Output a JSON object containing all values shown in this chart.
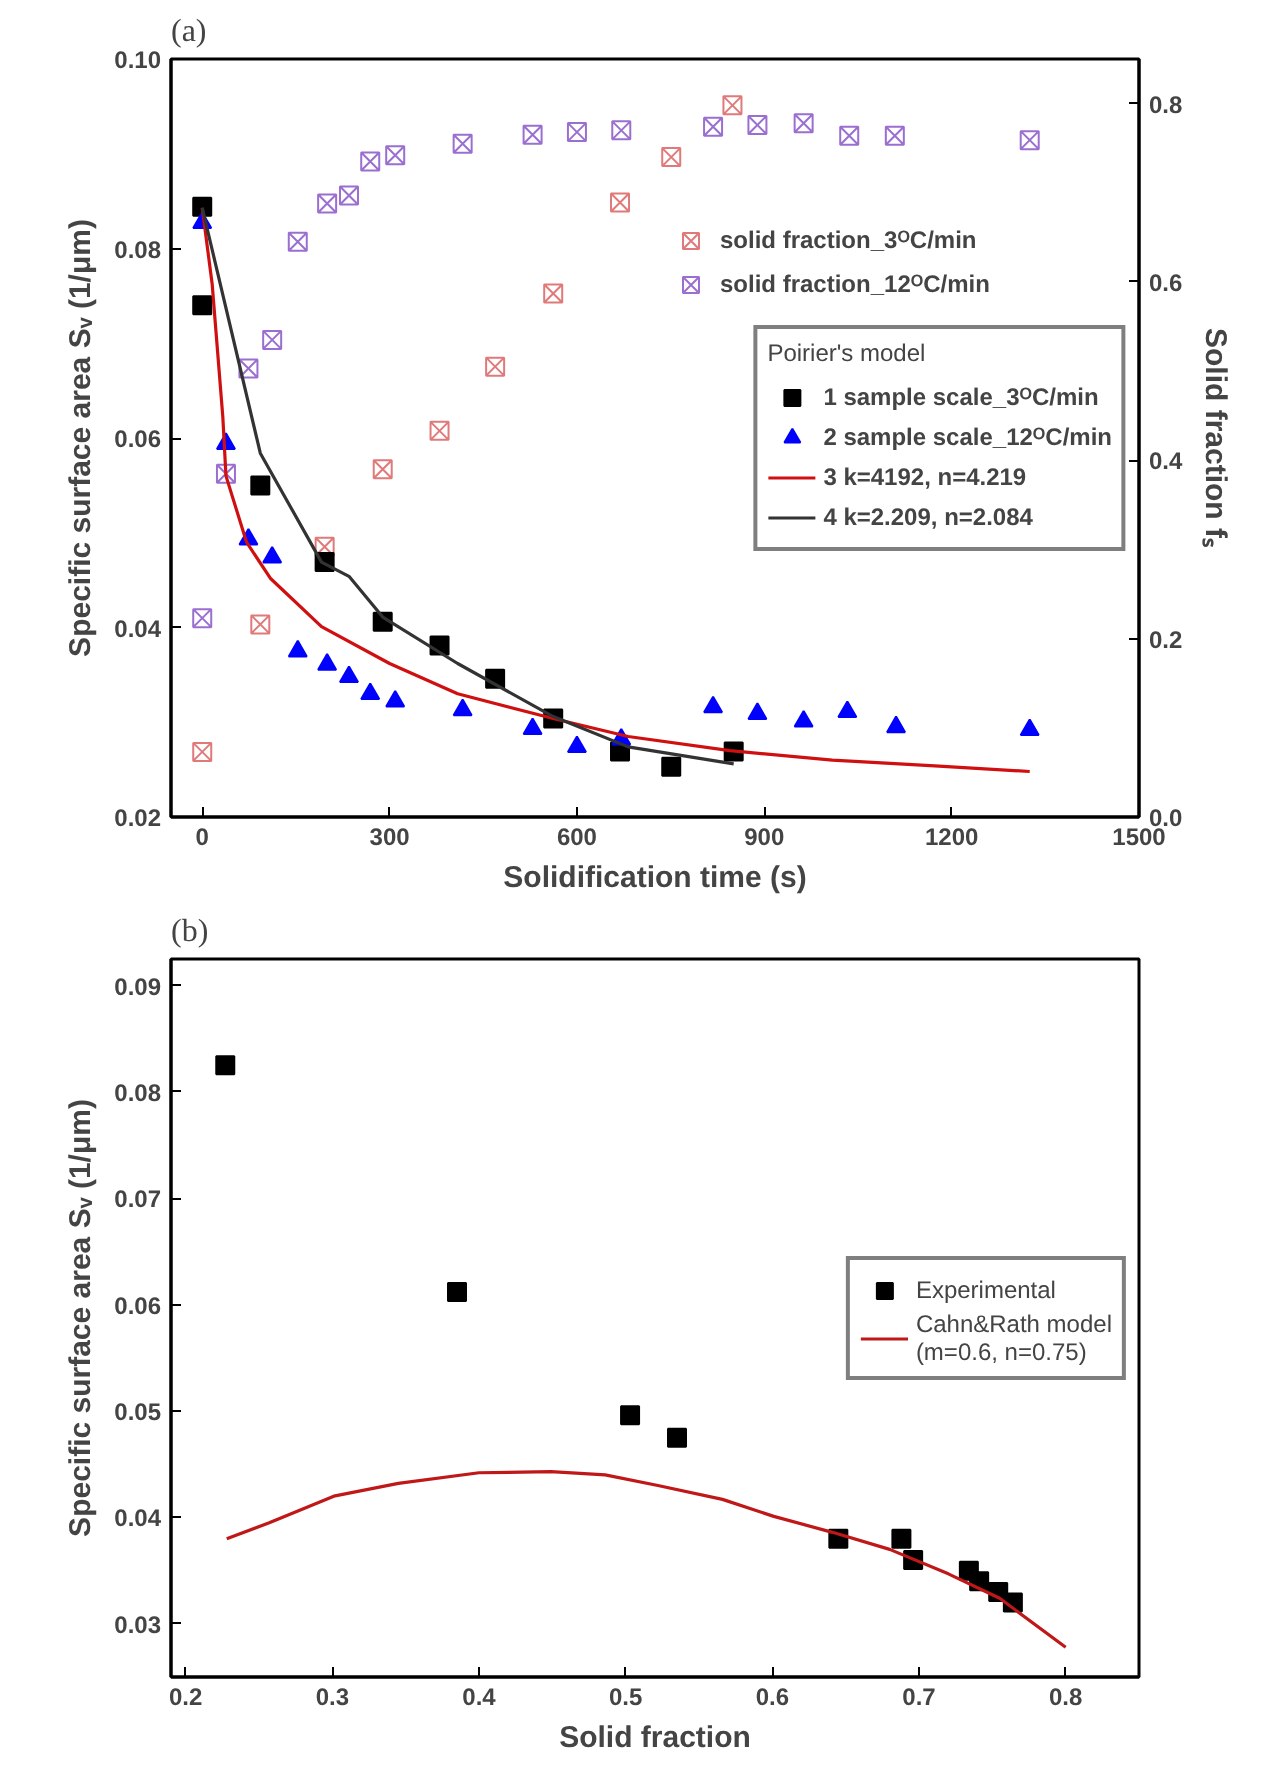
{
  "chart_data": [
    {
      "type": "scatter",
      "title": "(a)",
      "xlabel": "Solidification time (s)",
      "ylabel": "Specific surface area Sᵥ (1/μm)",
      "y2label": "Solid fraction fₛ",
      "xlim": [
        -50,
        1500
      ],
      "xticks": [
        0,
        300,
        600,
        900,
        1200,
        1500
      ],
      "ylim": [
        0.02,
        0.1
      ],
      "yticks": [
        0.02,
        0.04,
        0.06,
        0.08,
        {
          "value": 0.1,
          "label": "0.10"
        }
      ],
      "y2lim": [
        0,
        0.85
      ],
      "y2ticks": [
        {
          "value": 0,
          "label": "0.0"
        },
        0.2,
        0.4,
        0.6,
        0.8
      ],
      "grid": false,
      "legend": "center right",
      "legend_title": "Poirier's model",
      "series": [
        {
          "name": "solid fraction_3ᴼC/min",
          "marker": "cross",
          "color": "#e07a7a",
          "axis": "y2",
          "x": [
            0,
            93,
            196,
            289,
            380,
            469,
            562,
            669,
            751,
            849
          ],
          "values": [
            0.073,
            0.216,
            0.303,
            0.39,
            0.433,
            0.505,
            0.587,
            0.689,
            0.74,
            0.798
          ]
        },
        {
          "name": "solid fraction_12ᴼC/min",
          "marker": "cross",
          "color": "#9a6fd0",
          "axis": "y2",
          "x": [
            0,
            38,
            74,
            112,
            153,
            200,
            235,
            269,
            309,
            417,
            529,
            600,
            671,
            818,
            889,
            963,
            1036,
            1109,
            1325
          ],
          "values": [
            0.223,
            0.385,
            0.503,
            0.535,
            0.645,
            0.688,
            0.697,
            0.735,
            0.742,
            0.755,
            0.765,
            0.768,
            0.77,
            0.774,
            0.776,
            0.778,
            0.764,
            0.764,
            0.759
          ]
        },
        {
          "name": "1 sample scale_3ᴼC/min",
          "marker": "square",
          "color": "#000000",
          "x": [
            0,
            0,
            93,
            196,
            289,
            380,
            469,
            562,
            669,
            751,
            851
          ],
          "values": [
            0.0844,
            0.074,
            0.055,
            0.0469,
            0.0406,
            0.0381,
            0.0346,
            0.0304,
            0.0269,
            0.0253,
            0.0269
          ]
        },
        {
          "name": "2 sample scale_12ᴼC/min",
          "marker": "triangle",
          "color": "#0000ff",
          "x": [
            0,
            38,
            74,
            112,
            153,
            200,
            235,
            269,
            309,
            417,
            529,
            600,
            671,
            818,
            889,
            963,
            1033,
            1111,
            1325
          ],
          "values": [
            0.0827,
            0.0594,
            0.0493,
            0.0474,
            0.0375,
            0.0361,
            0.0348,
            0.033,
            0.0322,
            0.0313,
            0.0293,
            0.0274,
            0.0282,
            0.0316,
            0.0309,
            0.0301,
            0.0311,
            0.0295,
            0.0292
          ]
        },
        {
          "name": "3 k=4192, n=4.219",
          "type": "line",
          "line_style": "solid",
          "color": "#d01010",
          "x": [
            0,
            16,
            33,
            38,
            71,
            109,
            191,
            300,
            409,
            562,
            682,
            845,
            1009,
            1173,
            1325
          ],
          "values": [
            0.0843,
            0.0762,
            0.0622,
            0.056,
            0.049,
            0.0452,
            0.0401,
            0.0362,
            0.033,
            0.0304,
            0.0285,
            0.027,
            0.026,
            0.0254,
            0.0248
          ]
        },
        {
          "name": "4 k=2.209, n=2.084",
          "type": "line",
          "line_style": "solid",
          "color": "#333333",
          "x": [
            0,
            93,
            191,
            235,
            289,
            409,
            562,
            682,
            851
          ],
          "values": [
            0.0843,
            0.0584,
            0.0469,
            0.0454,
            0.0411,
            0.0362,
            0.0306,
            0.0274,
            0.0256
          ]
        }
      ]
    },
    {
      "type": "scatter",
      "title": "(b)",
      "xlabel": "Solid fraction",
      "ylabel": "Specific surface area Sᵥ (1/μm)",
      "xlim": [
        0.19,
        0.85
      ],
      "xticks": [
        0.2,
        0.3,
        0.4,
        0.5,
        0.6,
        0.7,
        0.8
      ],
      "ylim": [
        0.025,
        0.0925
      ],
      "yticks": [
        0.03,
        0.04,
        0.05,
        0.06,
        0.07,
        0.08,
        0.09
      ],
      "grid": false,
      "legend": "center right",
      "series": [
        {
          "name": "Experimental",
          "marker": "square",
          "color": "#000000",
          "x": [
            0.227,
            0.385,
            0.503,
            0.535,
            0.645,
            0.688,
            0.696,
            0.734,
            0.741,
            0.754,
            0.764
          ],
          "values": [
            0.0825,
            0.0612,
            0.0496,
            0.0475,
            0.038,
            0.038,
            0.036,
            0.035,
            0.034,
            0.033,
            0.032
          ]
        },
        {
          "name": "Cahn&Rath model\n(m=0.6, n=0.75)",
          "type": "line",
          "line_style": "solid",
          "color": "#c01818",
          "x": [
            0.228,
            0.257,
            0.301,
            0.345,
            0.4,
            0.449,
            0.486,
            0.522,
            0.566,
            0.601,
            0.641,
            0.68,
            0.72,
            0.755,
            0.8
          ],
          "values": [
            0.038,
            0.0395,
            0.042,
            0.0432,
            0.0442,
            0.0443,
            0.044,
            0.043,
            0.0417,
            0.0401,
            0.0386,
            0.037,
            0.0347,
            0.0324,
            0.0278
          ]
        }
      ]
    }
  ]
}
